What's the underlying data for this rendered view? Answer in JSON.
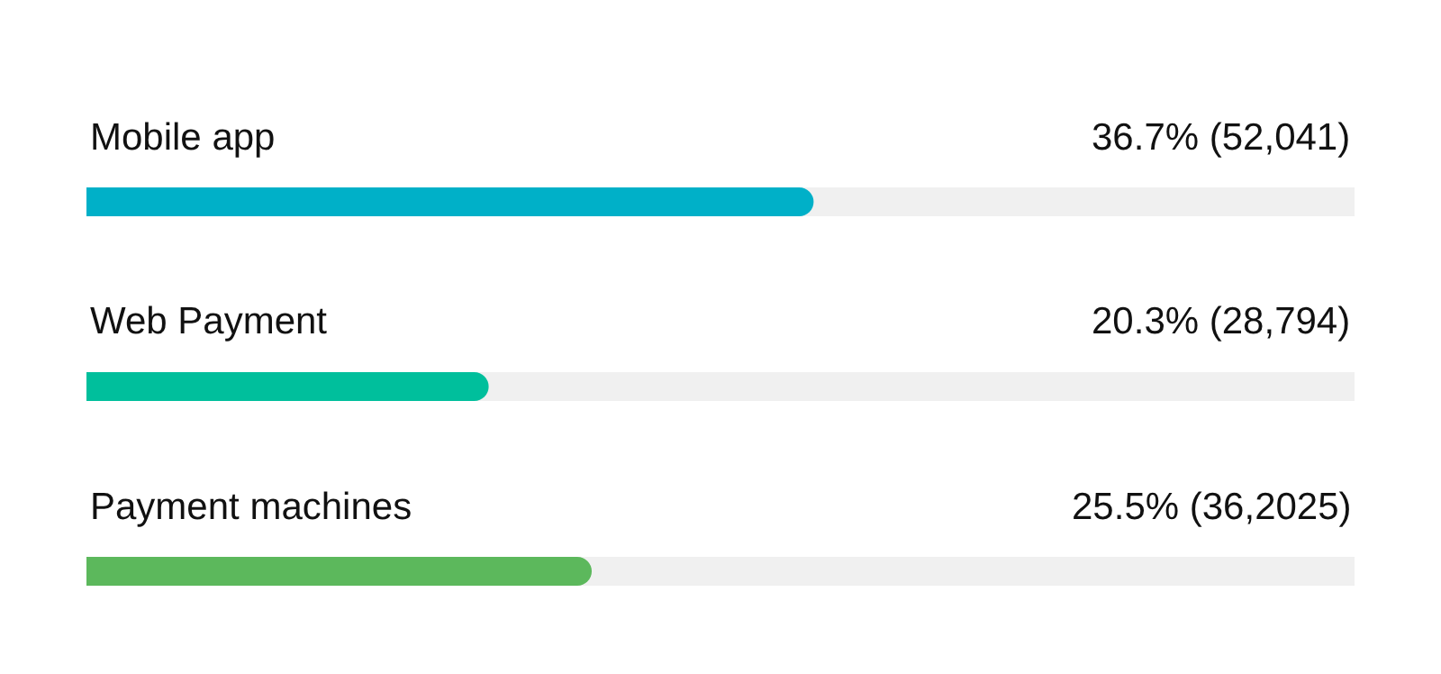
{
  "chart_data": {
    "type": "bar",
    "orientation": "horizontal",
    "categories": [
      "Mobile app",
      "Web Payment",
      "Payment machines"
    ],
    "values": [
      36.7,
      20.3,
      25.5
    ],
    "value_labels": [
      "36.7% (52,041)",
      "20.3% (28,794)",
      "25.5% (36,2025)"
    ],
    "colors": [
      "#00b0c8",
      "#00bf9c",
      "#5cb85c"
    ],
    "xlim": [
      0,
      64
    ],
    "tick_labels": false
  }
}
